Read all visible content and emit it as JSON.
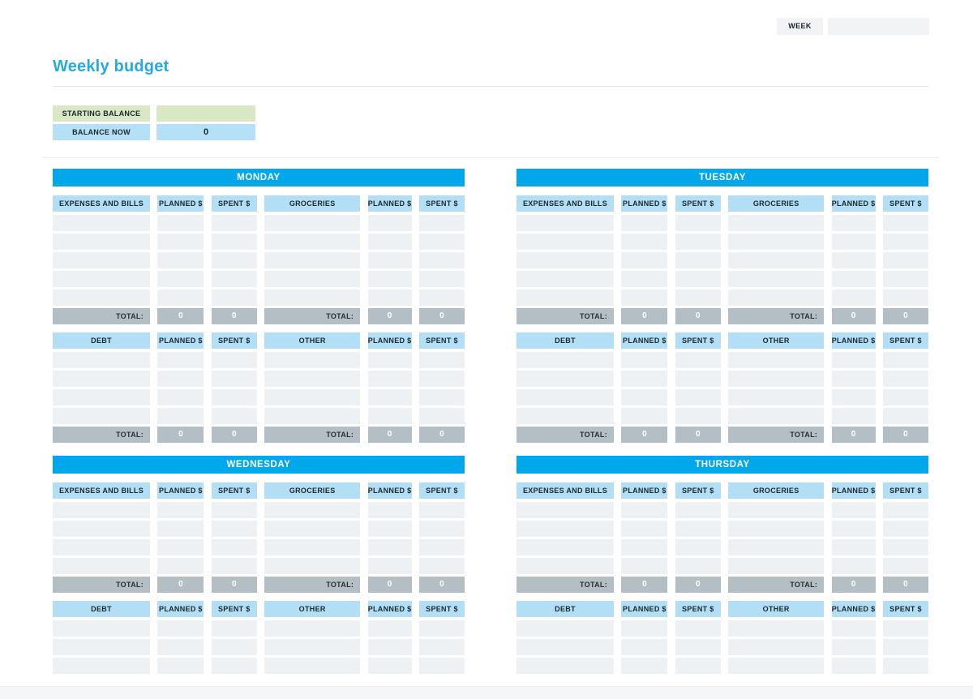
{
  "header": {
    "week_label": "WEEK",
    "week_value": "",
    "title": "Weekly budget"
  },
  "balance": {
    "starting_label": "STARTING BALANCE",
    "starting_value": "",
    "now_label": "BALANCE NOW",
    "now_value": "0"
  },
  "columns": {
    "planned": "PLANNED $",
    "spent": "SPENT $"
  },
  "totals_row": {
    "label": "TOTAL:"
  },
  "days": [
    {
      "name": "MONDAY",
      "blocks": [
        {
          "left_category": "EXPENSES AND BILLS",
          "right_category": "GROCERIES",
          "data_rows": 5,
          "totals": {
            "left_planned": "0",
            "left_spent": "0",
            "right_planned": "0",
            "right_spent": "0"
          }
        },
        {
          "left_category": "DEBT",
          "right_category": "OTHER",
          "data_rows": 4,
          "totals": {
            "left_planned": "0",
            "left_spent": "0",
            "right_planned": "0",
            "right_spent": "0"
          }
        }
      ]
    },
    {
      "name": "TUESDAY",
      "blocks": [
        {
          "left_category": "EXPENSES AND BILLS",
          "right_category": "GROCERIES",
          "data_rows": 5,
          "totals": {
            "left_planned": "0",
            "left_spent": "0",
            "right_planned": "0",
            "right_spent": "0"
          }
        },
        {
          "left_category": "DEBT",
          "right_category": "OTHER",
          "data_rows": 4,
          "totals": {
            "left_planned": "0",
            "left_spent": "0",
            "right_planned": "0",
            "right_spent": "0"
          }
        }
      ]
    },
    {
      "name": "WEDNESDAY",
      "blocks": [
        {
          "left_category": "EXPENSES AND BILLS",
          "right_category": "GROCERIES",
          "data_rows": 4,
          "totals": {
            "left_planned": "0",
            "left_spent": "0",
            "right_planned": "0",
            "right_spent": "0"
          }
        },
        {
          "left_category": "DEBT",
          "right_category": "OTHER",
          "data_rows": 3,
          "totals": null
        }
      ]
    },
    {
      "name": "THURSDAY",
      "blocks": [
        {
          "left_category": "EXPENSES AND BILLS",
          "right_category": "GROCERIES",
          "data_rows": 4,
          "totals": {
            "left_planned": "0",
            "left_spent": "0",
            "right_planned": "0",
            "right_spent": "0"
          }
        },
        {
          "left_category": "DEBT",
          "right_category": "OTHER",
          "data_rows": 3,
          "totals": null
        }
      ]
    }
  ],
  "colors": {
    "accent_blue": "#00a7ea",
    "title_blue": "#29a9e1",
    "column_header_blue": "#b2dff5",
    "balance_blue": "#b4e1f8",
    "balance_green": "#d9e7c5",
    "row_gray": "#edf1f4",
    "total_gray": "#b4bec5",
    "week_box_gray": "#f1f3f4",
    "bottom_strip_gray": "#f4f6f7"
  }
}
